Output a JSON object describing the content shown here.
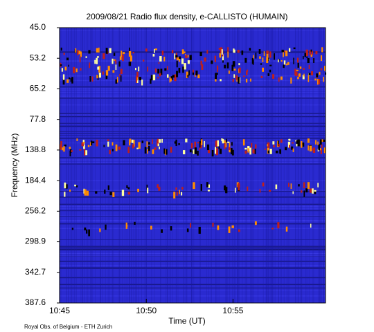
{
  "chart_data": {
    "type": "spectrogram",
    "title": "2009/08/21  Radio flux density, e-CALLISTO (HUMAIN)",
    "xlabel": "Time (UT)",
    "ylabel": "Frequency (MHz)",
    "footer": "Royal Obs. of Belgium - ETH Zurich",
    "xlim": [
      "10:45:00",
      "11:00:20"
    ],
    "xticks": [
      "10:45",
      "10:50",
      "10:55"
    ],
    "yticks": [
      {
        "value": 45,
        "label": "45.0"
      },
      {
        "value": 53.2,
        "label": "53.2"
      },
      {
        "value": 65.2,
        "label": "65.2"
      },
      {
        "value": 77.8,
        "label": "77.8"
      },
      {
        "value": 138.8,
        "label": "138.8"
      },
      {
        "value": 184.4,
        "label": "184.4"
      },
      {
        "value": 256.2,
        "label": "256.2"
      },
      {
        "value": 298.9,
        "label": "298.9"
      },
      {
        "value": 342.7,
        "label": "342.7"
      },
      {
        "value": 387.6,
        "label": "387.6"
      }
    ],
    "yaxis_inverted": true,
    "background": "#2a2ad0"
  }
}
